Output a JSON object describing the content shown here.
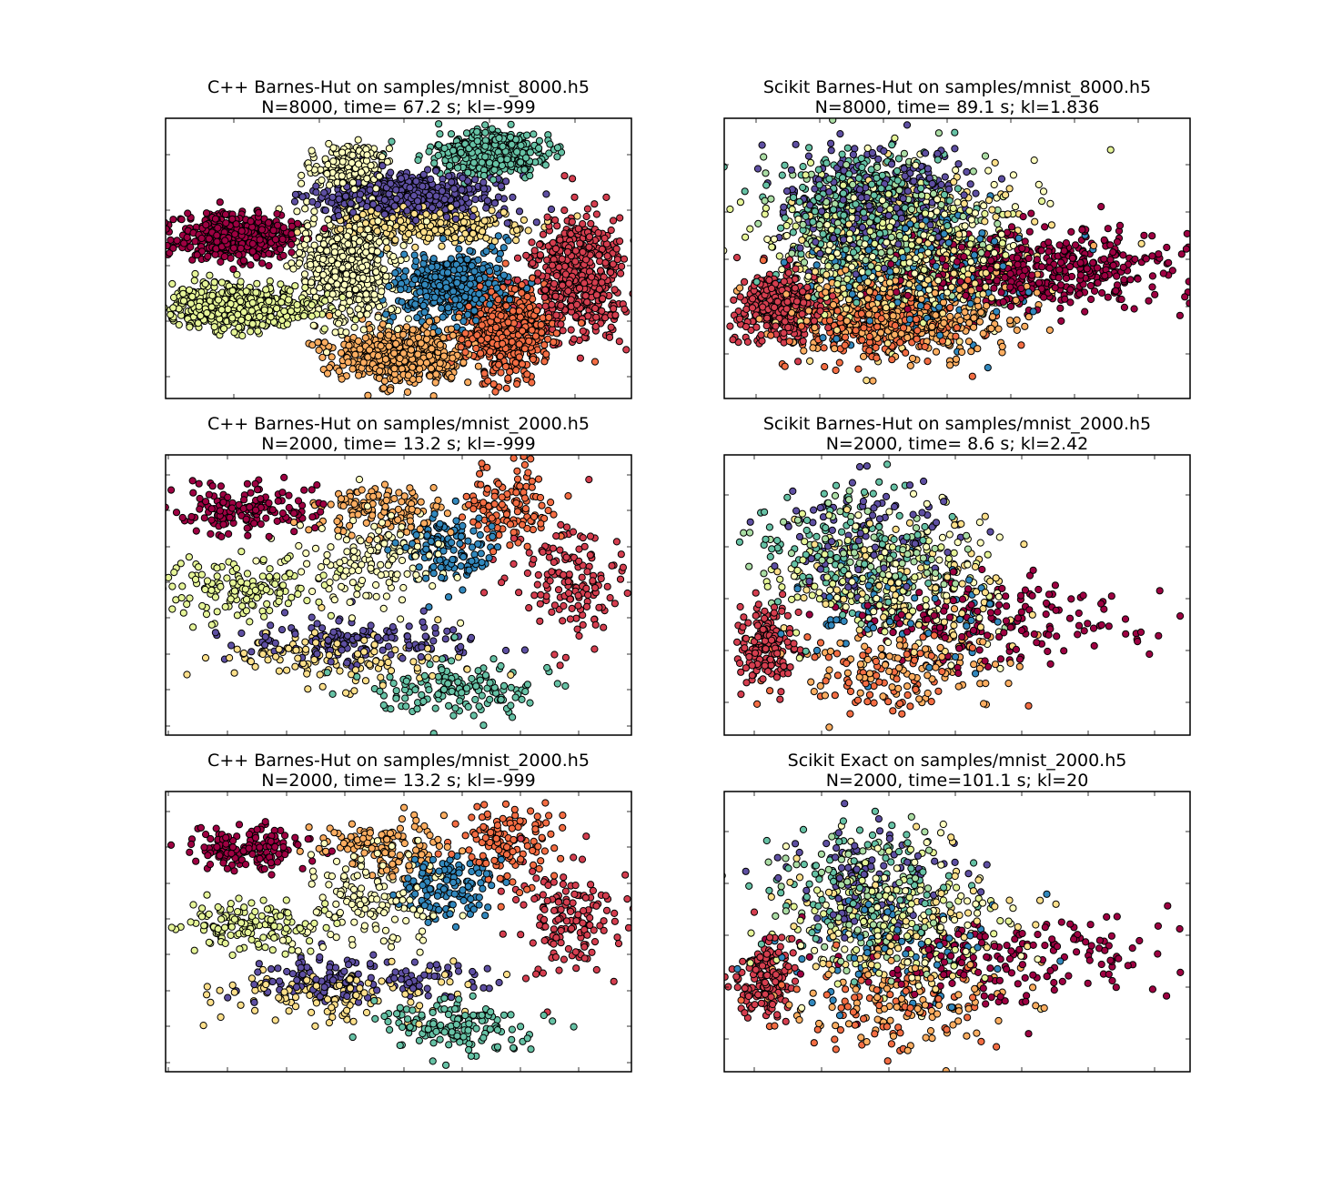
{
  "figure": {
    "colormap": "Spectral",
    "point_stroke": "#000000",
    "background": "#ffffff",
    "digit_colors": {
      "0": "#9e0142",
      "1": "#d53e4f",
      "2": "#f46d43",
      "3": "#fdae61",
      "4": "#fee08b",
      "5": "#ffffbf",
      "6": "#e6f598",
      "7": "#abdda4",
      "8": "#66c2a5",
      "9": "#3288bd",
      "10": "#5e4fa2"
    }
  },
  "chart_data": [
    {
      "type": "scatter",
      "title": [
        "C++ Barnes-Hut on samples/mnist_8000.h5",
        "N=8000, time= 67.2 s; kl=-999"
      ],
      "xlabel": "",
      "ylabel": "",
      "grid": false,
      "xlim": [
        0,
        100
      ],
      "ylim": [
        0,
        100
      ],
      "n_points": 8000,
      "clusters": [
        {
          "color": "#9e0142",
          "x": 15,
          "y": 58,
          "sx": 6,
          "sy": 4,
          "n": 520
        },
        {
          "color": "#e6f598",
          "x": 15,
          "y": 33,
          "sx": 9,
          "sy": 4,
          "n": 520
        },
        {
          "color": "#ffffbf",
          "x": 39,
          "y": 47,
          "sx": 5,
          "sy": 10,
          "n": 620
        },
        {
          "color": "#ffffbf",
          "x": 40,
          "y": 82,
          "sx": 4,
          "sy": 5,
          "n": 230
        },
        {
          "color": "#5e4fa2",
          "x": 52,
          "y": 72,
          "sx": 10,
          "sy": 4,
          "n": 520
        },
        {
          "color": "#fee08b",
          "x": 56,
          "y": 62,
          "sx": 11,
          "sy": 3,
          "n": 320
        },
        {
          "color": "#66c2a5",
          "x": 70,
          "y": 88,
          "sx": 6,
          "sy": 4,
          "n": 430
        },
        {
          "color": "#3288bd",
          "x": 62,
          "y": 40,
          "sx": 6,
          "sy": 6,
          "n": 470
        },
        {
          "color": "#fdae61",
          "x": 51,
          "y": 16,
          "sx": 7,
          "sy": 5,
          "n": 520
        },
        {
          "color": "#f46d43",
          "x": 73,
          "y": 24,
          "sx": 5,
          "sy": 8,
          "n": 520
        },
        {
          "color": "#d53e4f",
          "x": 88,
          "y": 44,
          "sx": 5,
          "sy": 10,
          "n": 520
        }
      ]
    },
    {
      "type": "scatter",
      "title": [
        "Scikit Barnes-Hut on samples/mnist_8000.h5",
        "N=8000, time= 89.1 s; kl=1.836"
      ],
      "xlabel": "",
      "ylabel": "",
      "grid": false,
      "xlim": [
        0,
        100
      ],
      "ylim": [
        0,
        100
      ],
      "n_points": 8000,
      "clusters": [
        {
          "color": "#d53e4f",
          "x": 12,
          "y": 33,
          "sx": 4,
          "sy": 6,
          "n": 380
        },
        {
          "color": "#9e0142",
          "x": 66,
          "y": 46,
          "sx": 16,
          "sy": 7,
          "n": 480
        },
        {
          "color": "#66c2a5",
          "x": 30,
          "y": 66,
          "sx": 9,
          "sy": 11,
          "n": 380
        },
        {
          "color": "#5e4fa2",
          "x": 33,
          "y": 70,
          "sx": 10,
          "sy": 11,
          "n": 300
        },
        {
          "color": "#e6f598",
          "x": 36,
          "y": 55,
          "sx": 12,
          "sy": 12,
          "n": 340
        },
        {
          "color": "#ffffbf",
          "x": 40,
          "y": 56,
          "sx": 12,
          "sy": 13,
          "n": 300
        },
        {
          "color": "#fee08b",
          "x": 42,
          "y": 50,
          "sx": 13,
          "sy": 13,
          "n": 300
        },
        {
          "color": "#abdda4",
          "x": 33,
          "y": 60,
          "sx": 10,
          "sy": 12,
          "n": 260
        },
        {
          "color": "#3288bd",
          "x": 40,
          "y": 46,
          "sx": 12,
          "sy": 12,
          "n": 220
        },
        {
          "color": "#fdae61",
          "x": 40,
          "y": 30,
          "sx": 12,
          "sy": 8,
          "n": 380
        },
        {
          "color": "#f46d43",
          "x": 34,
          "y": 27,
          "sx": 10,
          "sy": 7,
          "n": 260
        }
      ]
    },
    {
      "type": "scatter",
      "title": [
        "C++ Barnes-Hut on samples/mnist_2000.h5",
        "N=2000, time= 13.2 s; kl=-999"
      ],
      "xlabel": "",
      "ylabel": "",
      "grid": false,
      "xlim": [
        0,
        100
      ],
      "ylim": [
        0,
        100
      ],
      "n_points": 2000,
      "clusters": [
        {
          "color": "#9e0142",
          "x": 17,
          "y": 80,
          "sx": 7,
          "sy": 4,
          "n": 150
        },
        {
          "color": "#e6f598",
          "x": 17,
          "y": 53,
          "sx": 8,
          "sy": 5,
          "n": 150
        },
        {
          "color": "#fdae61",
          "x": 47,
          "y": 80,
          "sx": 7,
          "sy": 5,
          "n": 130
        },
        {
          "color": "#ffffbf",
          "x": 44,
          "y": 62,
          "sx": 8,
          "sy": 10,
          "n": 150
        },
        {
          "color": "#3288bd",
          "x": 60,
          "y": 66,
          "sx": 5,
          "sy": 6,
          "n": 130
        },
        {
          "color": "#f46d43",
          "x": 73,
          "y": 82,
          "sx": 5,
          "sy": 7,
          "n": 130
        },
        {
          "color": "#d53e4f",
          "x": 87,
          "y": 55,
          "sx": 6,
          "sy": 10,
          "n": 150
        },
        {
          "color": "#5e4fa2",
          "x": 40,
          "y": 33,
          "sx": 12,
          "sy": 4,
          "n": 150
        },
        {
          "color": "#fee08b",
          "x": 36,
          "y": 28,
          "sx": 13,
          "sy": 5,
          "n": 130
        },
        {
          "color": "#66c2a5",
          "x": 62,
          "y": 16,
          "sx": 9,
          "sy": 5,
          "n": 150
        }
      ]
    },
    {
      "type": "scatter",
      "title": [
        "Scikit Barnes-Hut on samples/mnist_2000.h5",
        "N=2000, time=  8.6 s; kl=2.42"
      ],
      "xlabel": "",
      "ylabel": "",
      "grid": false,
      "xlim": [
        0,
        100
      ],
      "ylim": [
        0,
        100
      ],
      "n_points": 2000,
      "clusters": [
        {
          "color": "#d53e4f",
          "x": 9,
          "y": 33,
          "sx": 3,
          "sy": 7,
          "n": 160
        },
        {
          "color": "#9e0142",
          "x": 60,
          "y": 40,
          "sx": 17,
          "sy": 8,
          "n": 180
        },
        {
          "color": "#66c2a5",
          "x": 30,
          "y": 66,
          "sx": 10,
          "sy": 11,
          "n": 130
        },
        {
          "color": "#5e4fa2",
          "x": 30,
          "y": 70,
          "sx": 9,
          "sy": 10,
          "n": 100
        },
        {
          "color": "#e6f598",
          "x": 34,
          "y": 55,
          "sx": 12,
          "sy": 12,
          "n": 110
        },
        {
          "color": "#fee08b",
          "x": 40,
          "y": 52,
          "sx": 13,
          "sy": 13,
          "n": 110
        },
        {
          "color": "#ffffbf",
          "x": 38,
          "y": 58,
          "sx": 12,
          "sy": 13,
          "n": 100
        },
        {
          "color": "#abdda4",
          "x": 32,
          "y": 60,
          "sx": 10,
          "sy": 12,
          "n": 90
        },
        {
          "color": "#3288bd",
          "x": 38,
          "y": 44,
          "sx": 12,
          "sy": 10,
          "n": 80
        },
        {
          "color": "#fdae61",
          "x": 40,
          "y": 24,
          "sx": 12,
          "sy": 8,
          "n": 110
        },
        {
          "color": "#f46d43",
          "x": 34,
          "y": 22,
          "sx": 10,
          "sy": 8,
          "n": 80
        }
      ]
    },
    {
      "type": "scatter",
      "title": [
        "C++ Barnes-Hut on samples/mnist_2000.h5",
        "N=2000, time= 13.2 s; kl=-999"
      ],
      "xlabel": "",
      "ylabel": "",
      "grid": false,
      "xlim": [
        0,
        100
      ],
      "ylim": [
        0,
        100
      ],
      "n_points": 2000,
      "clusters": [
        {
          "color": "#9e0142",
          "x": 17,
          "y": 80,
          "sx": 7,
          "sy": 4,
          "n": 150
        },
        {
          "color": "#e6f598",
          "x": 17,
          "y": 53,
          "sx": 8,
          "sy": 5,
          "n": 150
        },
        {
          "color": "#fdae61",
          "x": 47,
          "y": 80,
          "sx": 7,
          "sy": 5,
          "n": 130
        },
        {
          "color": "#ffffbf",
          "x": 44,
          "y": 62,
          "sx": 8,
          "sy": 10,
          "n": 150
        },
        {
          "color": "#3288bd",
          "x": 60,
          "y": 66,
          "sx": 5,
          "sy": 6,
          "n": 130
        },
        {
          "color": "#f46d43",
          "x": 73,
          "y": 82,
          "sx": 5,
          "sy": 7,
          "n": 130
        },
        {
          "color": "#d53e4f",
          "x": 87,
          "y": 55,
          "sx": 6,
          "sy": 10,
          "n": 150
        },
        {
          "color": "#5e4fa2",
          "x": 40,
          "y": 33,
          "sx": 12,
          "sy": 4,
          "n": 150
        },
        {
          "color": "#fee08b",
          "x": 36,
          "y": 28,
          "sx": 13,
          "sy": 5,
          "n": 130
        },
        {
          "color": "#66c2a5",
          "x": 62,
          "y": 16,
          "sx": 9,
          "sy": 5,
          "n": 150
        }
      ]
    },
    {
      "type": "scatter",
      "title": [
        "Scikit Exact on samples/mnist_2000.h5",
        "N=2000, time=101.1 s; kl=20"
      ],
      "xlabel": "",
      "ylabel": "",
      "grid": false,
      "xlim": [
        0,
        100
      ],
      "ylim": [
        0,
        100
      ],
      "n_points": 2000,
      "clusters": [
        {
          "color": "#d53e4f",
          "x": 9,
          "y": 33,
          "sx": 3,
          "sy": 7,
          "n": 160
        },
        {
          "color": "#9e0142",
          "x": 60,
          "y": 40,
          "sx": 17,
          "sy": 8,
          "n": 180
        },
        {
          "color": "#66c2a5",
          "x": 30,
          "y": 66,
          "sx": 10,
          "sy": 11,
          "n": 130
        },
        {
          "color": "#5e4fa2",
          "x": 30,
          "y": 70,
          "sx": 9,
          "sy": 10,
          "n": 100
        },
        {
          "color": "#e6f598",
          "x": 34,
          "y": 55,
          "sx": 12,
          "sy": 12,
          "n": 110
        },
        {
          "color": "#fee08b",
          "x": 40,
          "y": 52,
          "sx": 13,
          "sy": 13,
          "n": 110
        },
        {
          "color": "#ffffbf",
          "x": 38,
          "y": 58,
          "sx": 12,
          "sy": 13,
          "n": 100
        },
        {
          "color": "#abdda4",
          "x": 32,
          "y": 60,
          "sx": 10,
          "sy": 12,
          "n": 90
        },
        {
          "color": "#3288bd",
          "x": 38,
          "y": 44,
          "sx": 12,
          "sy": 10,
          "n": 80
        },
        {
          "color": "#fdae61",
          "x": 40,
          "y": 24,
          "sx": 12,
          "sy": 8,
          "n": 110
        },
        {
          "color": "#f46d43",
          "x": 34,
          "y": 22,
          "sx": 10,
          "sy": 8,
          "n": 80
        }
      ]
    }
  ]
}
